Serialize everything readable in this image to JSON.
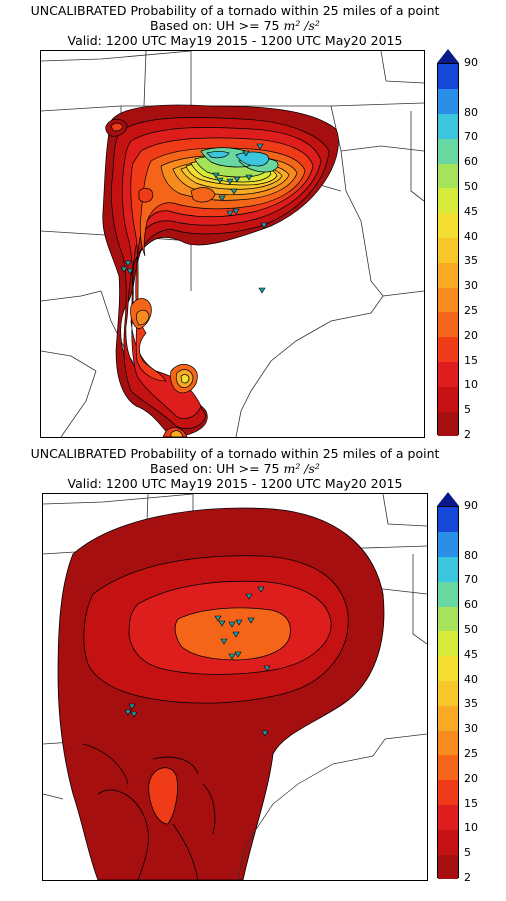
{
  "panels": [
    {
      "title_line1": "UNCALIBRATED Probability of a tornado within 25 miles of a point",
      "title_line2_prefix": "Based on: UH >= 75",
      "title_line2_units": "m² /s²",
      "title_line3": "Valid: 1200 UTC May19 2015 - 1200 UTC May20 2015"
    },
    {
      "title_line1": "UNCALIBRATED Probability of a tornado within 25 miles of a point",
      "title_line2_prefix": "Based on: UH >= 75",
      "title_line2_units": "m² /s²",
      "title_line3": "Valid: 1200 UTC May19 2015 - 1200 UTC May20 2015"
    }
  ],
  "colorbar": {
    "labels": [
      "2",
      "5",
      "10",
      "15",
      "20",
      "25",
      "30",
      "35",
      "40",
      "45",
      "50",
      "60",
      "70",
      "80",
      "90"
    ],
    "colors": [
      "#a50f0f",
      "#c41212",
      "#de1d1d",
      "#ef3b17",
      "#f4651a",
      "#f78b1f",
      "#f8a925",
      "#f8c62b",
      "#f3df34",
      "#d6ea3c",
      "#a5e35a",
      "#69d7a2",
      "#3cc6de",
      "#2a8fe8",
      "#1548d8"
    ],
    "top_color": "#0a1a8a"
  },
  "colors": {
    "outline": "#000000",
    "report_marker": "#1e9da8",
    "map_line": "#333333"
  },
  "storm_reports_icon": "inverted-triangle-marker"
}
